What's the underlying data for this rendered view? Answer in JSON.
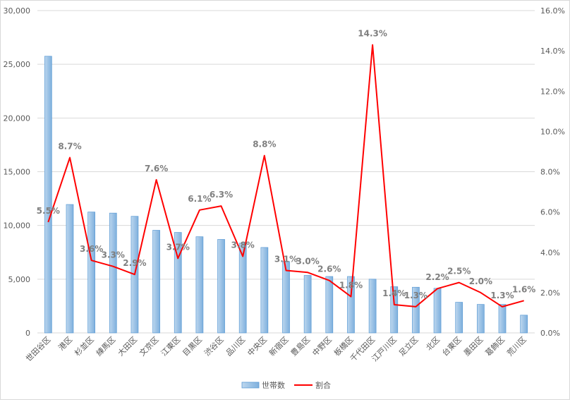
{
  "chart_data": {
    "type": "bar+line",
    "title": "",
    "categories": [
      "世田谷区",
      "港区",
      "杉並区",
      "練馬区",
      "大田区",
      "文京区",
      "江東区",
      "目黒区",
      "渋谷区",
      "品川区",
      "中央区",
      "新宿区",
      "豊島区",
      "中野区",
      "板橋区",
      "千代田区",
      "江戸川区",
      "足立区",
      "北区",
      "台東区",
      "墨田区",
      "葛飾区",
      "荒川区"
    ],
    "series": [
      {
        "name": "世帯数",
        "type": "bar",
        "axis": "left",
        "color": "#9dc3e6",
        "values": [
          25750,
          11950,
          11250,
          11150,
          10850,
          9550,
          9350,
          8950,
          8700,
          8350,
          7950,
          6650,
          5350,
          5250,
          5250,
          5000,
          4300,
          4250,
          4150,
          2850,
          2650,
          2650,
          1650
        ]
      },
      {
        "name": "割合",
        "type": "line",
        "axis": "right",
        "color": "#ff0000",
        "values": [
          5.5,
          8.7,
          3.6,
          3.3,
          2.9,
          7.6,
          3.7,
          6.1,
          6.3,
          3.8,
          8.8,
          3.1,
          3.0,
          2.6,
          1.8,
          14.3,
          1.4,
          1.3,
          2.2,
          2.5,
          2.0,
          1.3,
          1.6
        ],
        "labels": [
          "5.5%",
          "8.7%",
          "3.6%",
          "3.3%",
          "2.9%",
          "7.6%",
          "3.7%",
          "6.1%",
          "6.3%",
          "3.8%",
          "8.8%",
          "3.1%",
          "3.0%",
          "2.6%",
          "1.8%",
          "14.3%",
          "1.4%",
          "1.3%",
          "2.2%",
          "2.5%",
          "2.0%",
          "1.3%",
          "1.6%"
        ]
      }
    ],
    "y_left": {
      "min": 0,
      "max": 30000,
      "ticks": [
        "0",
        "5,000",
        "10,000",
        "15,000",
        "20,000",
        "25,000",
        "30,000"
      ],
      "tick_values": [
        0,
        5000,
        10000,
        15000,
        20000,
        25000,
        30000
      ]
    },
    "y_right": {
      "min": 0,
      "max": 16,
      "ticks": [
        "0.0%",
        "2.0%",
        "4.0%",
        "6.0%",
        "8.0%",
        "10.0%",
        "12.0%",
        "14.0%",
        "16.0%"
      ],
      "tick_values": [
        0,
        2,
        4,
        6,
        8,
        10,
        12,
        14,
        16
      ]
    },
    "grid": true,
    "legend": {
      "position": "bottom",
      "items": [
        "世帯数",
        "割合"
      ]
    },
    "colors": {
      "axis_text": "#595959",
      "label_text": "#7f7f7f",
      "grid": "#d9d9d9",
      "bar_border": "#5b9bd5"
    }
  }
}
